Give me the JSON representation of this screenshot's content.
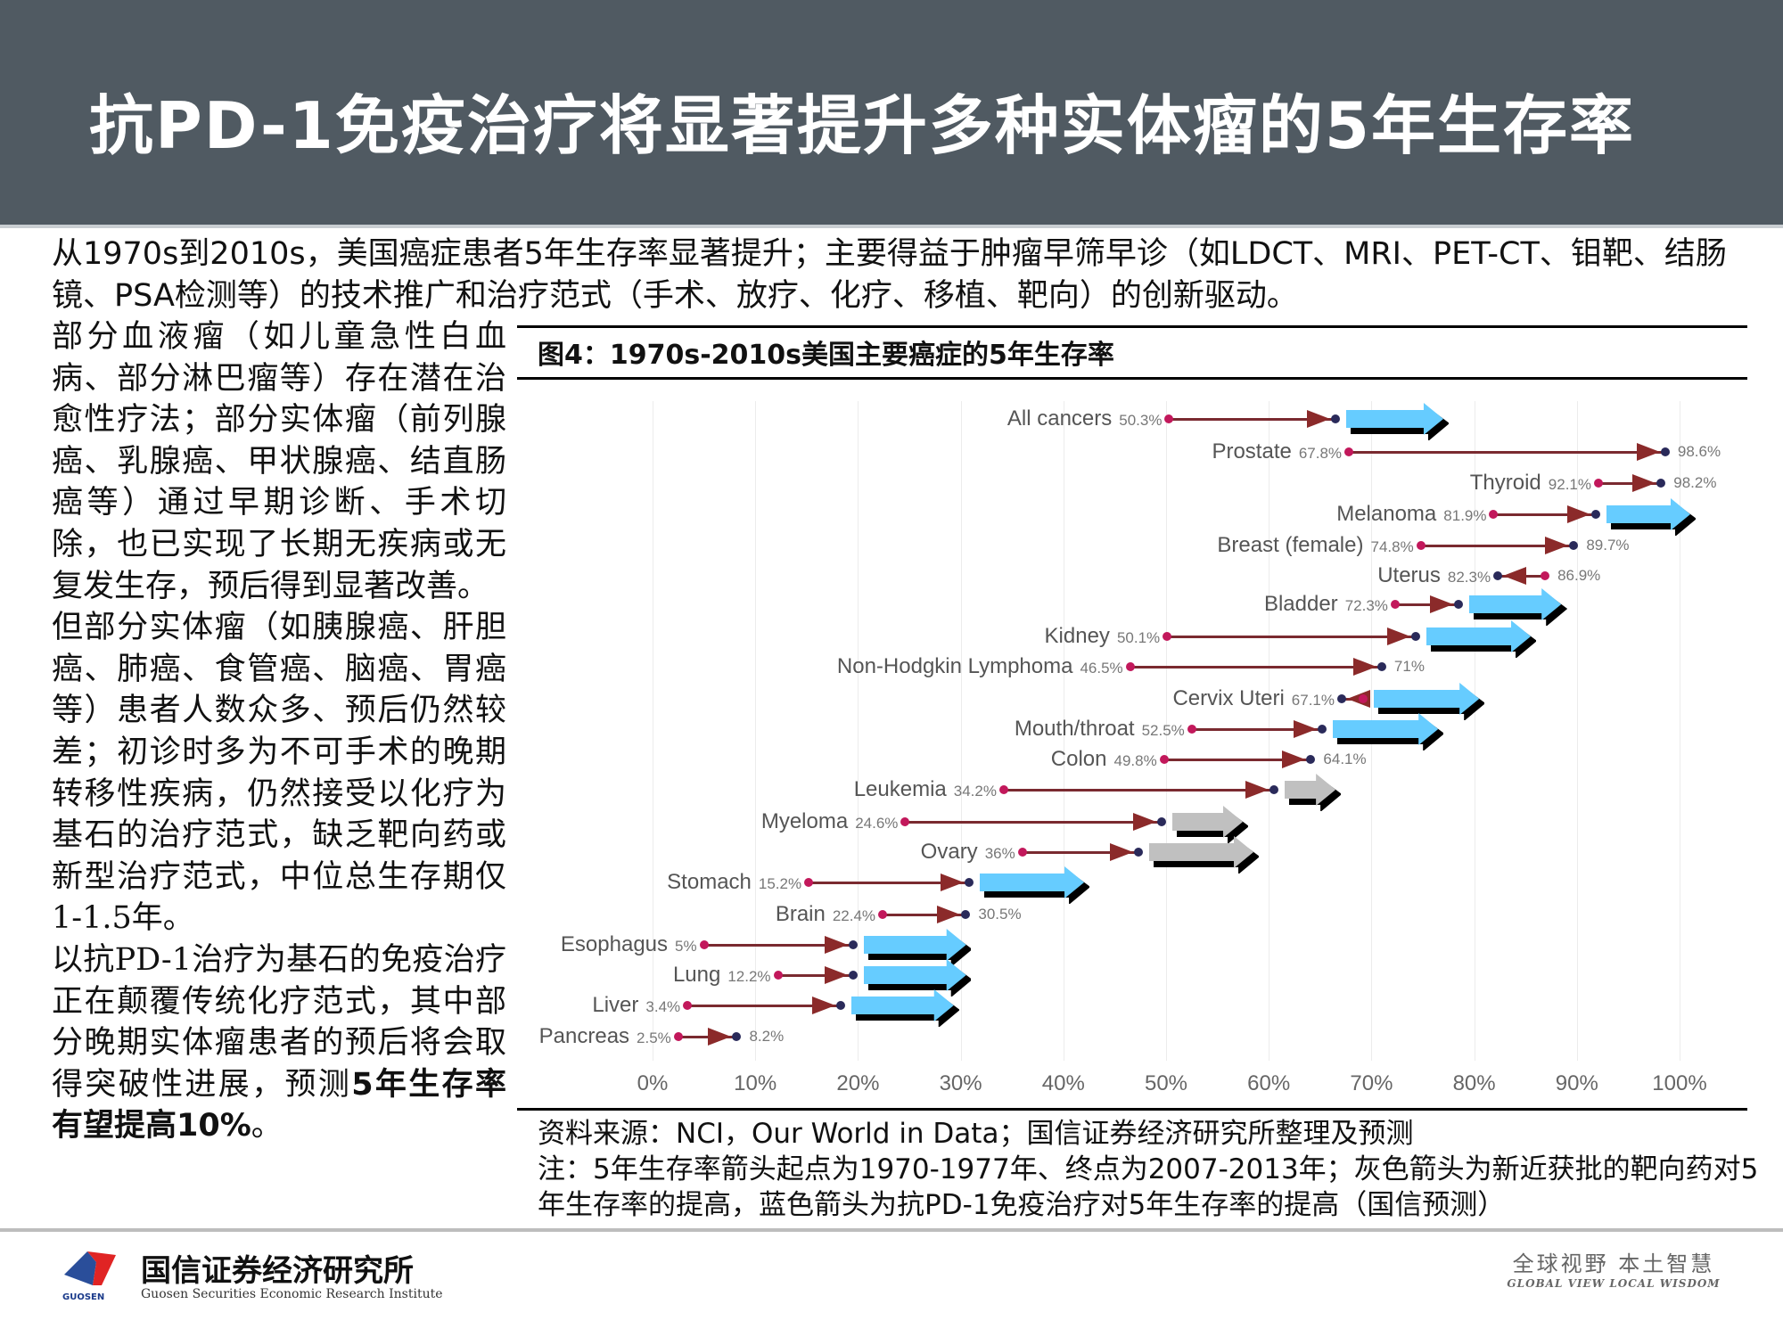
{
  "header": {
    "title": "抗PD-1免疫治疗将显著提升多种实体瘤的5年生存率"
  },
  "intro": {
    "text": "从1970s到2010s，美国癌症患者5年生存率显著提升；主要得益于肿瘤早筛早诊（如LDCT、MRI、PET-CT、钼靶、结肠镜、PSA检测等）的技术推广和治疗范式（手术、放疗、化疗、移植、靶向）的创新驱动。"
  },
  "left_column": {
    "para1": "部分血液瘤（如儿童急性白血病、部分淋巴瘤等）存在潜在治愈性疗法；部分实体瘤（前列腺癌、乳腺癌、甲状腺癌、结直肠癌等）通过早期诊断、手术切除，也已实现了长期无疾病或无复发生存，预后得到显著改善。",
    "para2": "但部分实体瘤（如胰腺癌、肝胆癌、肺癌、食管癌、脑癌、胃癌等）患者人数众多、预后仍然较差；初诊时多为不可手术的晚期转移性疾病，仍然接受以化疗为基石的治疗范式，缺乏靶向药或新型治疗范式，中位总生存期仅1-1.5年。",
    "para3_normal": "以抗PD-1治疗为基石的免疫治疗正在颠覆传统化疗范式，其中部分晚期实体瘤患者的预后将会取得突破性进展，预测",
    "para3_bold": "5年生存率有望提高10%",
    "para3_end": "。"
  },
  "figure": {
    "title": "图4：1970s-2010s美国主要癌症的5年生存率",
    "source": "资料来源：NCI，Our World in Data；国信证券经济研究所整理及预测",
    "note": "注：5年生存率箭头起点为1970-1977年、终点为2007-2013年；灰色箭头为新近获批的靶向药对5年生存率的提高，蓝色箭头为抗PD-1免疫治疗对5年生存率的提高（国信预测）"
  },
  "chart_data": {
    "type": "dumbbell-arrow",
    "title": "图4：1970s-2010s美国主要癌症的5年生存率",
    "xlabel": "",
    "ylabel": "",
    "xlim": [
      0,
      100
    ],
    "x_ticks": [
      "0%",
      "10%",
      "20%",
      "30%",
      "40%",
      "50%",
      "60%",
      "70%",
      "80%",
      "90%",
      "100%"
    ],
    "grid": true,
    "legend": {
      "start": "1970-1977 (magenta dot)",
      "end": "2007-2013 (dark navy dot)",
      "gray_arrow": "新近获批的靶向药对5年生存率的提高",
      "blue_arrow": "抗PD-1免疫治疗对5年生存率的提高（国信预测）"
    },
    "colors": {
      "start_dot": "#c2185b",
      "end_dot": "#2a2a5a",
      "arrow_line": "#7a2a30",
      "blue_arrow": "#66ccff",
      "gray_arrow": "#c0c0c0"
    },
    "series": [
      {
        "name": "All cancers",
        "start": 50.3,
        "start_label": "50.3%",
        "end": 66.5,
        "end_label": "",
        "extra": "blue",
        "extra_to": 77
      },
      {
        "name": "Prostate",
        "start": 67.8,
        "start_label": "67.8%",
        "end": 98.6,
        "end_label": "98.6%",
        "extra": "",
        "extra_to": null
      },
      {
        "name": "Thyroid",
        "start": 92.1,
        "start_label": "92.1%",
        "end": 98.2,
        "end_label": "98.2%",
        "extra": "",
        "extra_to": null
      },
      {
        "name": "Melanoma",
        "start": 81.9,
        "start_label": "81.9%",
        "end": 91.8,
        "end_label": "",
        "extra": "blue",
        "extra_to": 101
      },
      {
        "name": "Breast (female)",
        "start": 74.8,
        "start_label": "74.8%",
        "end": 89.7,
        "end_label": "89.7%",
        "extra": "",
        "extra_to": null
      },
      {
        "name": "Uterus",
        "start": 86.9,
        "start_label": "86.9%",
        "end": 82.3,
        "end_label": "82.3%",
        "extra": "",
        "extra_to": null,
        "label_pct": "82.3%"
      },
      {
        "name": "Bladder",
        "start": 72.3,
        "start_label": "72.3%",
        "end": 78.5,
        "end_label": "",
        "extra": "blue",
        "extra_to": 88.5
      },
      {
        "name": "Kidney",
        "start": 50.1,
        "start_label": "50.1%",
        "end": 74.3,
        "end_label": "",
        "extra": "blue",
        "extra_to": 85.5
      },
      {
        "name": "Non-Hodgkin Lymphoma",
        "start": 46.5,
        "start_label": "46.5%",
        "end": 71,
        "end_label": "71%",
        "extra": "",
        "extra_to": null
      },
      {
        "name": "Cervix Uteri",
        "start": 69.2,
        "start_label": "",
        "end": 67.1,
        "end_label": "",
        "extra": "blue",
        "extra_to": 80.5,
        "label_pct": "67.1%"
      },
      {
        "name": "Mouth/throat",
        "start": 52.5,
        "start_label": "52.5%",
        "end": 65.2,
        "end_label": "",
        "extra": "blue",
        "extra_to": 76.5
      },
      {
        "name": "Colon",
        "start": 49.8,
        "start_label": "49.8%",
        "end": 64.1,
        "end_label": "64.1%",
        "extra": "",
        "extra_to": null
      },
      {
        "name": "Leukemia",
        "start": 34.2,
        "start_label": "34.2%",
        "end": 60.5,
        "end_label": "",
        "extra": "gray",
        "extra_to": 66.5
      },
      {
        "name": "Myeloma",
        "start": 24.6,
        "start_label": "24.6%",
        "end": 49.6,
        "end_label": "",
        "extra": "gray",
        "extra_to": 57.5
      },
      {
        "name": "Ovary",
        "start": 36,
        "start_label": "36%",
        "end": 47.3,
        "end_label": "",
        "extra": "gray",
        "extra_to": 58.5
      },
      {
        "name": "Stomach",
        "start": 15.2,
        "start_label": "15.2%",
        "end": 30.8,
        "end_label": "",
        "extra": "blue",
        "extra_to": 42
      },
      {
        "name": "Brain",
        "start": 22.4,
        "start_label": "22.4%",
        "end": 30.5,
        "end_label": "30.5%",
        "extra": "",
        "extra_to": null
      },
      {
        "name": "Esophagus",
        "start": 5,
        "start_label": "5%",
        "end": 19.5,
        "end_label": "",
        "extra": "blue",
        "extra_to": 30.5
      },
      {
        "name": "Lung",
        "start": 12.2,
        "start_label": "12.2%",
        "end": 19.5,
        "end_label": "",
        "extra": "blue",
        "extra_to": 30.5
      },
      {
        "name": "Liver",
        "start": 3.4,
        "start_label": "3.4%",
        "end": 18.3,
        "end_label": "",
        "extra": "blue",
        "extra_to": 29.3
      },
      {
        "name": "Pancreas",
        "start": 2.5,
        "start_label": "2.5%",
        "end": 8.2,
        "end_label": "8.2%",
        "extra": "",
        "extra_to": null
      }
    ]
  },
  "footer": {
    "logo_cn": "国信证券经济研究所",
    "logo_en": "Guosen Securities Economic Research Institute",
    "logo_tag": "GUOSEN",
    "slogan_cn": "全球视野  本土智慧",
    "slogan_en": "GLOBAL VIEW   LOCAL WISDOM"
  }
}
